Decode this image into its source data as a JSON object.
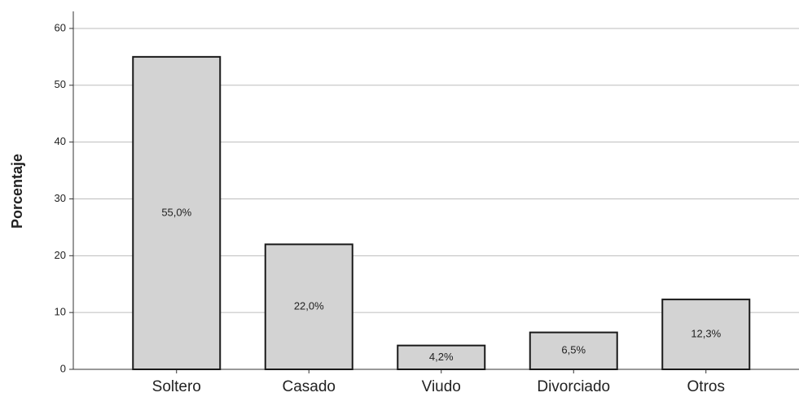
{
  "chart_data": {
    "type": "bar",
    "y_label": "Porcentaje",
    "categories": [
      "Soltero",
      "Casado",
      "Viudo",
      "Divorciado",
      "Otros"
    ],
    "values": [
      55.0,
      22.0,
      4.2,
      6.5,
      12.3
    ],
    "value_labels": [
      "55,0%",
      "22,0%",
      "4,2%",
      "6,5%",
      "12,3%"
    ],
    "color": "#d3d3d3",
    "ylim": [
      0,
      63
    ],
    "yticks": [
      0,
      10,
      20,
      30,
      40,
      50,
      60
    ],
    "grid": true
  }
}
